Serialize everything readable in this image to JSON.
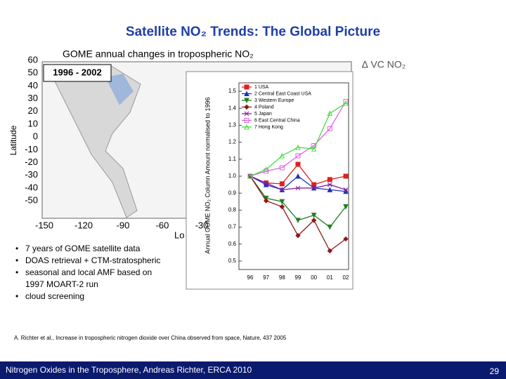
{
  "title": "Satellite NO₂ Trends: The Global Picture",
  "map": {
    "title": "GOME annual changes in tropospheric  NO₂",
    "period": "1996 - 2002",
    "colorbar_label": "∆ VC NO₂",
    "ylabel": "Latitude",
    "xlabel": "Lo",
    "lat_ticks": [
      "60",
      "50",
      "40",
      "30",
      "20",
      "10",
      "0",
      "-10",
      "-20",
      "-30",
      "-40",
      "-50"
    ],
    "lon_ticks": [
      "-150",
      "-120",
      "-90",
      "-60",
      "-30"
    ]
  },
  "bullets": [
    "7 years of GOME satellite data",
    "DOAS retrieval + CTM-stratospheric",
    "seasonal and local AMF based on 1997 MOART-2 run",
    "cloud screening"
  ],
  "citation": "A. Richter et al., Increase in tropospheric nitrogen dioxide over China observed from space, Nature, 437 2005",
  "footer": {
    "text": "Nitrogen Oxides in the Troposphere, Andreas Richter, ERCA 2010",
    "page": "29"
  },
  "chart_data": {
    "type": "line",
    "ylabel": "Annual GOME NO₂ Column Amount normalised to 1996",
    "categories": [
      "96",
      "97",
      "98",
      "99",
      "00",
      "01",
      "02"
    ],
    "ylim": [
      0.45,
      1.55
    ],
    "yticks": [
      0.5,
      0.6,
      0.7,
      0.8,
      0.9,
      {
        "value": 1.0,
        "label": "1.0"
      },
      1.1,
      1.2,
      1.3,
      1.4,
      1.5
    ],
    "series": [
      {
        "name": "1 USA",
        "color": "#e02020",
        "marker": "square",
        "values": [
          1.0,
          0.96,
          0.955,
          1.07,
          0.95,
          0.98,
          1.0
        ]
      },
      {
        "name": "2 Central East Coast USA",
        "color": "#2030c0",
        "marker": "triangle",
        "values": [
          1.0,
          0.95,
          0.92,
          1.0,
          0.93,
          0.92,
          0.91
        ]
      },
      {
        "name": "3 Western Europe",
        "color": "#208020",
        "marker": "triangle-down",
        "values": [
          1.0,
          0.87,
          0.85,
          0.74,
          0.77,
          0.7,
          0.82
        ]
      },
      {
        "name": "4 Poland",
        "color": "#901818",
        "marker": "diamond",
        "values": [
          1.0,
          0.855,
          0.82,
          0.65,
          0.74,
          0.56,
          0.63
        ]
      },
      {
        "name": "5 Japan",
        "color": "#8020a0",
        "marker": "star",
        "values": [
          1.0,
          0.96,
          0.92,
          0.93,
          0.93,
          0.95,
          0.92
        ]
      },
      {
        "name": "6 East Central China",
        "color": "#e060e0",
        "marker": "square-open",
        "values": [
          1.0,
          1.03,
          1.05,
          1.12,
          1.18,
          1.28,
          1.44
        ]
      },
      {
        "name": "7 Hong Kong",
        "color": "#40e040",
        "marker": "triangle-open",
        "values": [
          1.0,
          1.04,
          1.12,
          1.17,
          1.16,
          1.37,
          1.43
        ]
      }
    ]
  }
}
